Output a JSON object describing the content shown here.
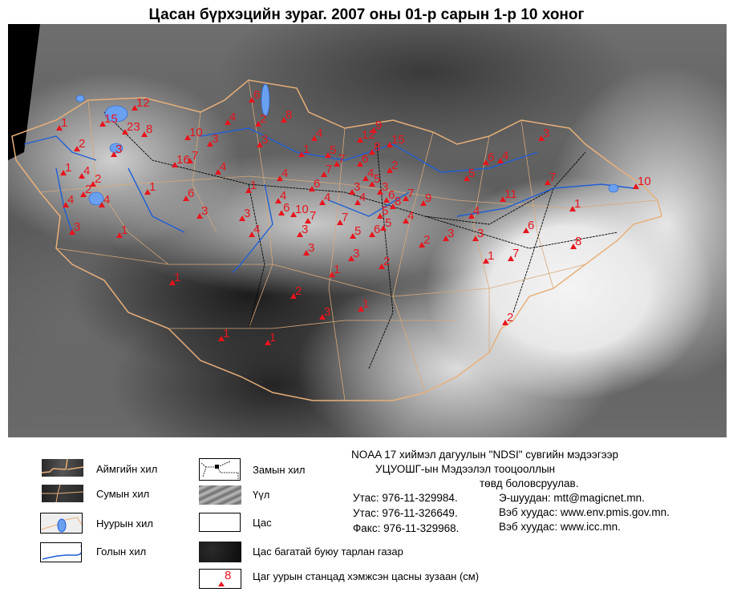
{
  "title": "Цасан бүрхэцийн зураг. 2007 оны 01-р сарын 1-р 10 хоног",
  "colors": {
    "station": "#e8141c",
    "aimag_border": "#e8b07a",
    "river": "#1f5fd6",
    "lake": "#6aa0f0",
    "road": "#000000"
  },
  "map": {
    "station_values": [
      12,
      15,
      23,
      8,
      1,
      2,
      3,
      1,
      4,
      2,
      2,
      4,
      4,
      3,
      1,
      1,
      6,
      10,
      16,
      7,
      3,
      4,
      3,
      1,
      6,
      2,
      4,
      8,
      3,
      4,
      1,
      5,
      7,
      7,
      1,
      4,
      4,
      6,
      4,
      6,
      10,
      7,
      7,
      3,
      4,
      3,
      3,
      5,
      6,
      5,
      9,
      12,
      15,
      8,
      6,
      2,
      4,
      5,
      3,
      3,
      4,
      6,
      8,
      7,
      9,
      5,
      4,
      2,
      3,
      1,
      2,
      2,
      3,
      1,
      1,
      1,
      3,
      3,
      6,
      4,
      5,
      7,
      10,
      11,
      4,
      1,
      6,
      3,
      8,
      1,
      7,
      2
    ]
  },
  "legend": {
    "left": [
      {
        "label": "Аймгийн хил",
        "icon": "aimag-border-swatch"
      },
      {
        "label": "Сумын хил",
        "icon": "sum-border-swatch"
      },
      {
        "label": "Нуурын хил",
        "icon": "lake-swatch"
      },
      {
        "label": "Голын хил",
        "icon": "river-swatch"
      }
    ],
    "right": [
      {
        "label": "Замын хил",
        "icon": "road-swatch"
      },
      {
        "label": "Үүл",
        "icon": "cloud-swatch"
      },
      {
        "label": "Цас",
        "icon": "snow-swatch"
      },
      {
        "label": "Цас багатай буюу тарлан газар",
        "icon": "patchy-snow-swatch"
      },
      {
        "label": "Цаг уурын станцад хэмжсэн цасны зузаан (см)",
        "icon": "station-swatch",
        "sample": "8"
      }
    ]
  },
  "info": {
    "line1": "NOAA 17 хиймэл дагуулын \"NDSI\" сувгийн мэдээгээр",
    "line2": "УЦУОШГ-ын Мэдээлэл тооцооллын",
    "line3": "төвд боловсруулав.",
    "phone1": "Утас: 976-11-329984.",
    "phone2": "Утас: 976-11-326649.",
    "fax": "Факс: 976-11-329968.",
    "email": "Э-шуудан: mtt@magicnet.mn.",
    "web1": "Вэб хуудас: www.env.pmis.gov.mn.",
    "web2": "Вэб хуудас: www.icc.mn."
  }
}
